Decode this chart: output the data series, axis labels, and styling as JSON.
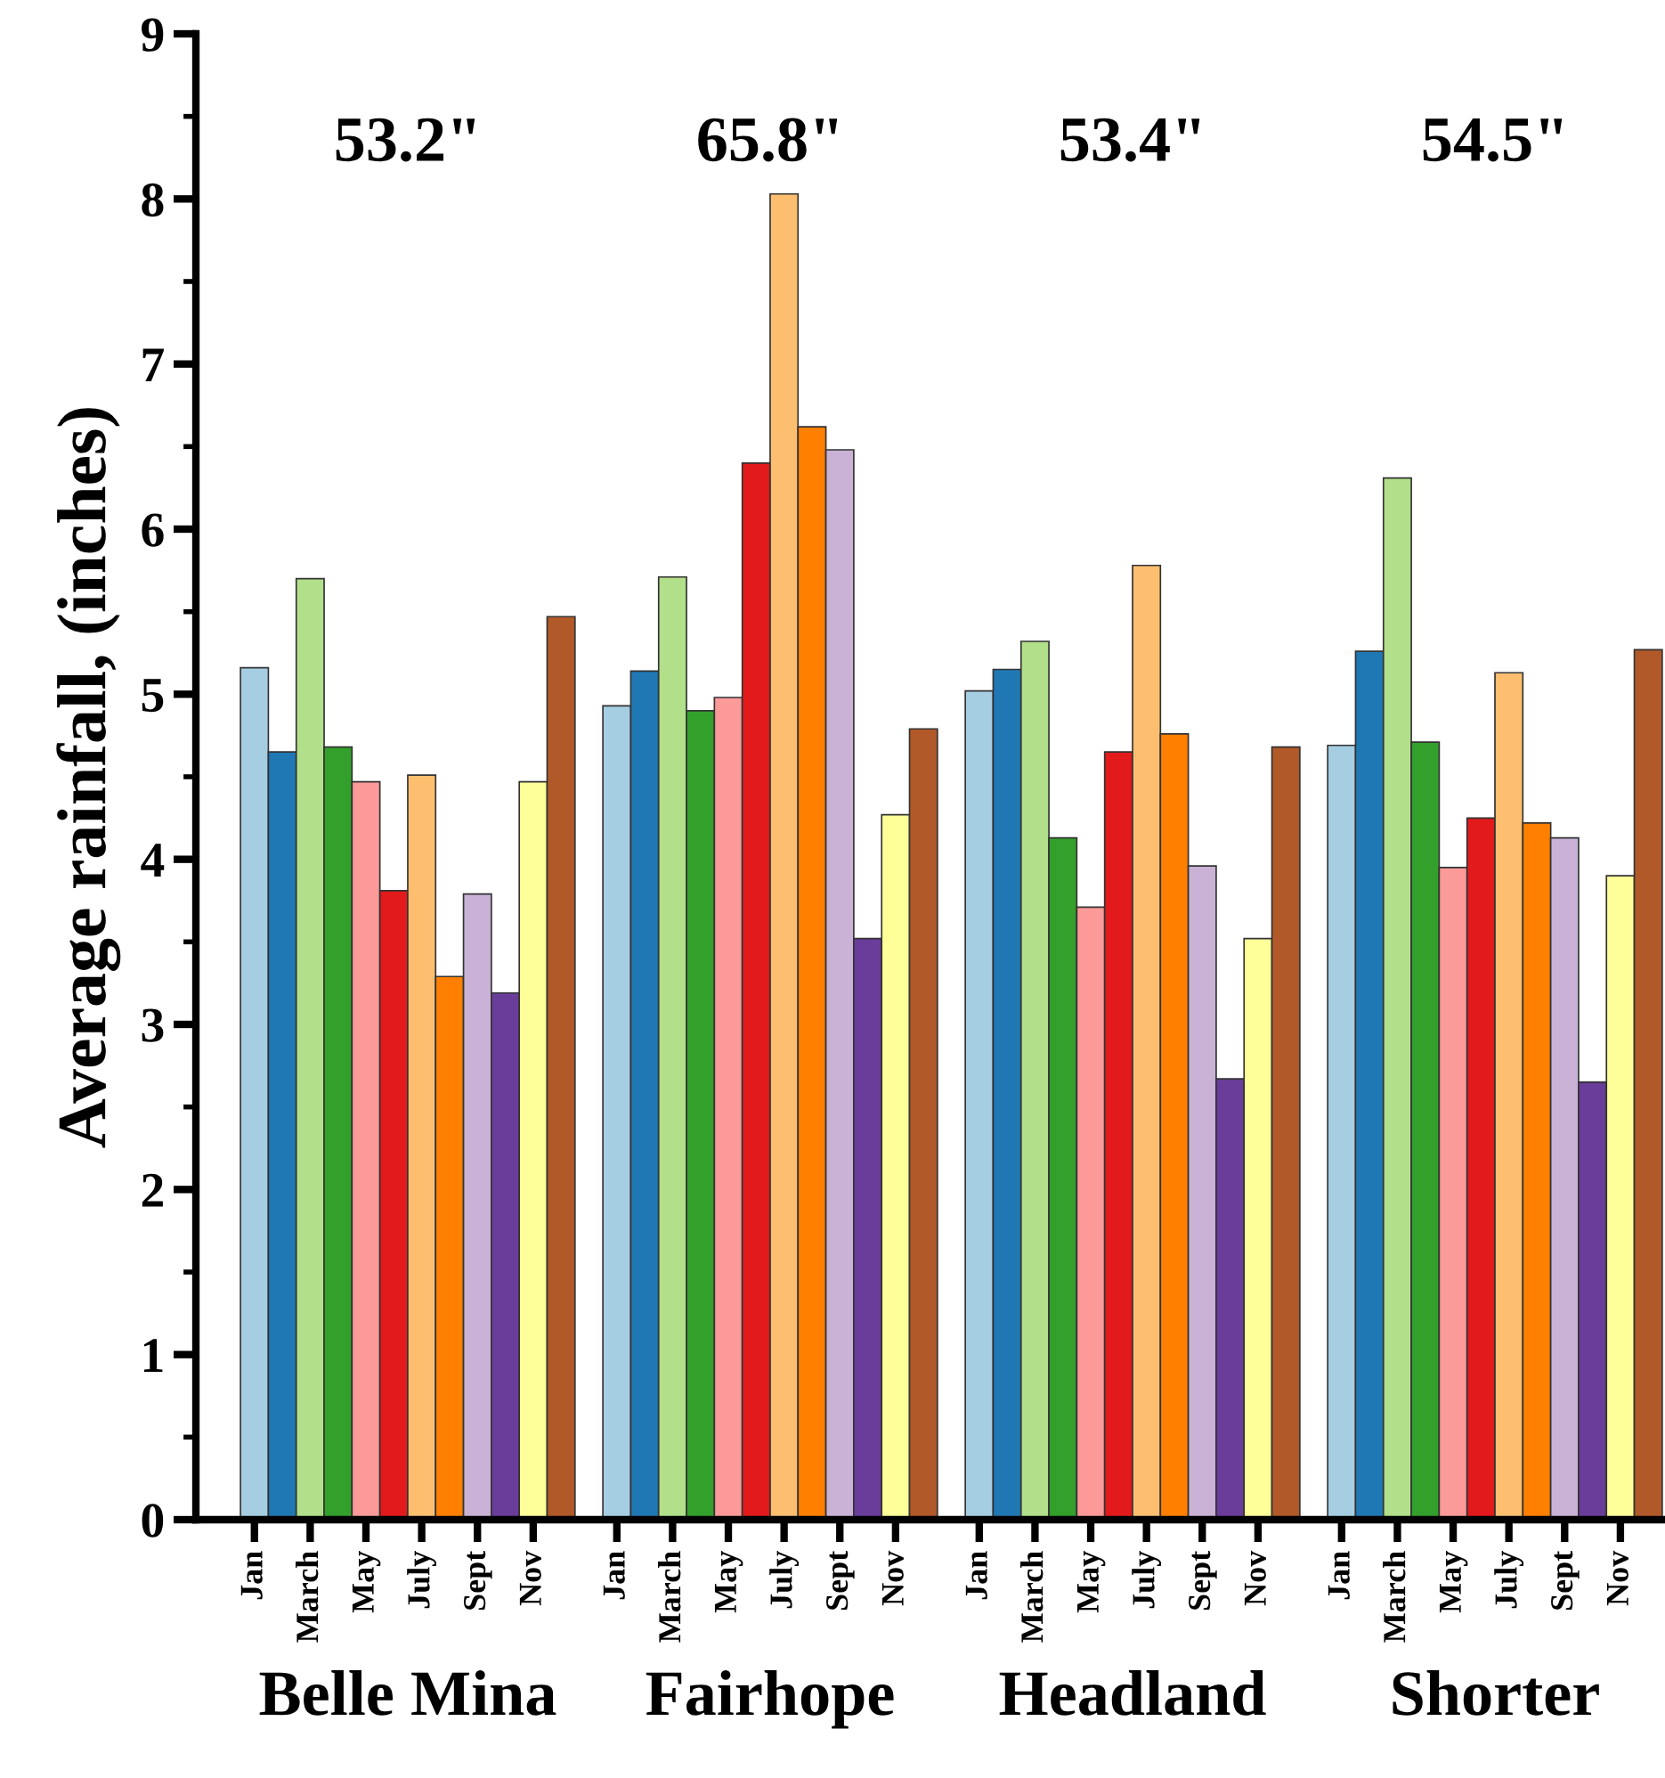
{
  "chart_data": {
    "type": "bar",
    "ylabel": "Average rainfall, (inches)",
    "categories": [
      "Jan",
      null,
      "March",
      null,
      "May",
      null,
      "July",
      null,
      "Sept",
      null,
      "Nov",
      null,
      null,
      "Jan",
      null,
      "March",
      null,
      "May",
      null,
      "July",
      null,
      "Sept",
      null,
      "Nov",
      null,
      null,
      "Jan",
      null,
      "March",
      null,
      "May",
      null,
      "July",
      null,
      "Sept",
      null,
      "Nov",
      null,
      null,
      "Jan",
      null,
      "March",
      null,
      "May",
      null,
      "July",
      null,
      "Sept",
      null,
      "Nov",
      null
    ],
    "values": [
      5.16,
      4.65,
      5.7,
      4.68,
      4.47,
      3.81,
      4.51,
      3.29,
      3.79,
      3.19,
      4.47,
      5.47,
      null,
      4.93,
      5.14,
      5.71,
      4.9,
      4.98,
      6.4,
      8.03,
      6.62,
      6.48,
      3.52,
      4.27,
      4.79,
      null,
      5.02,
      5.15,
      5.32,
      4.13,
      3.71,
      4.65,
      5.78,
      4.76,
      3.96,
      2.67,
      3.52,
      4.68,
      null,
      4.69,
      5.26,
      6.31,
      4.71,
      3.95,
      4.25,
      5.13,
      4.22,
      4.13,
      2.65,
      3.9,
      5.27
    ],
    "colors": [
      "#a6cee3",
      "#1f78b4",
      "#b2df8a",
      "#33a02c",
      "#fb9a99",
      "#e31a1c",
      "#fdbf6f",
      "#ff7f00",
      "#cab2d6",
      "#6a3d9a",
      "#ffff99",
      "#b15928",
      null,
      "#a6cee3",
      "#1f78b4",
      "#b2df8a",
      "#33a02c",
      "#fb9a99",
      "#e31a1c",
      "#fdbf6f",
      "#ff7f00",
      "#cab2d6",
      "#6a3d9a",
      "#ffff99",
      "#b15928",
      null,
      "#a6cee3",
      "#1f78b4",
      "#b2df8a",
      "#33a02c",
      "#fb9a99",
      "#e31a1c",
      "#fdbf6f",
      "#ff7f00",
      "#cab2d6",
      "#6a3d9a",
      "#ffff99",
      "#b15928",
      null,
      "#a6cee3",
      "#1f78b4",
      "#b2df8a",
      "#33a02c",
      "#fb9a99",
      "#e31a1c",
      "#fdbf6f",
      "#ff7f00",
      "#cab2d6",
      "#6a3d9a",
      "#ffff99",
      "#b15928"
    ],
    "ylim": [
      0,
      9
    ],
    "yticks": [
      0,
      1,
      2,
      3,
      4,
      5,
      6,
      7,
      8,
      9
    ],
    "grid": false,
    "legend": false,
    "annotations": [
      "53.2\"",
      "65.8\"",
      "53.4\"",
      "54.5\"",
      "Belle Mina",
      "Fairhope",
      "Headland",
      "Shorter"
    ]
  }
}
